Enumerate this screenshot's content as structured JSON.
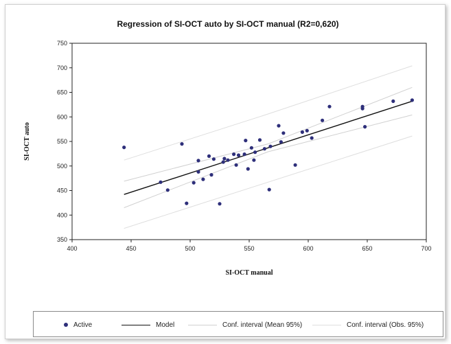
{
  "chart_data": {
    "type": "scatter",
    "title": "Regression of SI-OCT auto by SI-OCT manual (R2=0,620)",
    "xlabel": "SI-OCT manual",
    "ylabel": "SI-OCT auto",
    "xlim": [
      400,
      700
    ],
    "ylim": [
      350,
      750
    ],
    "x_ticks": [
      400,
      450,
      500,
      550,
      600,
      650,
      700
    ],
    "y_ticks": [
      350,
      400,
      450,
      500,
      550,
      600,
      650,
      700,
      750
    ],
    "x_tick_labels": [
      "400",
      "450",
      "500",
      "550",
      "600",
      "650",
      "700"
    ],
    "y_tick_labels": [
      "350",
      "400",
      "450",
      "500",
      "550",
      "600",
      "650",
      "700",
      "750"
    ],
    "grid": false,
    "legend_position": "bottom",
    "legend": [
      "Active",
      "Model",
      "Conf. interval (Mean 95%)",
      "Conf. interval (Obs. 95%)"
    ],
    "colors": {
      "points": "#2e2f7a",
      "model": "#111111",
      "conf_mean": "#d0d0d0",
      "conf_obs": "#dedede"
    },
    "series": [
      {
        "name": "Active",
        "kind": "points",
        "points": [
          [
            444,
            538
          ],
          [
            475,
            467
          ],
          [
            481,
            451
          ],
          [
            493,
            545
          ],
          [
            497,
            424
          ],
          [
            503,
            466
          ],
          [
            507,
            488
          ],
          [
            507,
            511
          ],
          [
            511,
            473
          ],
          [
            516,
            520
          ],
          [
            518,
            482
          ],
          [
            520,
            514
          ],
          [
            525,
            423
          ],
          [
            528,
            508
          ],
          [
            529,
            515
          ],
          [
            532,
            512
          ],
          [
            537,
            524
          ],
          [
            539,
            502
          ],
          [
            541,
            522
          ],
          [
            546,
            524
          ],
          [
            547,
            552
          ],
          [
            549,
            494
          ],
          [
            552,
            537
          ],
          [
            554,
            512
          ],
          [
            555,
            528
          ],
          [
            559,
            553
          ],
          [
            563,
            535
          ],
          [
            567,
            452
          ],
          [
            568,
            540
          ],
          [
            575,
            582
          ],
          [
            577,
            549
          ],
          [
            579,
            567
          ],
          [
            589,
            502
          ],
          [
            595,
            569
          ],
          [
            599,
            572
          ],
          [
            603,
            557
          ],
          [
            612,
            593
          ],
          [
            618,
            621
          ],
          [
            646,
            621
          ],
          [
            646,
            617
          ],
          [
            648,
            580
          ],
          [
            672,
            632
          ],
          [
            688,
            634
          ]
        ]
      },
      {
        "name": "Model",
        "kind": "line",
        "points": [
          [
            444,
            442
          ],
          [
            688,
            632
          ]
        ]
      },
      {
        "name": "Conf. interval (Mean 95%)",
        "kind": "band",
        "upper": [
          [
            444,
            469
          ],
          [
            566,
            545
          ],
          [
            688,
            660
          ]
        ],
        "lower": [
          [
            444,
            415
          ],
          [
            566,
            529
          ],
          [
            688,
            604
          ]
        ]
      },
      {
        "name": "Conf. interval (Obs. 95%)",
        "kind": "band",
        "upper": [
          [
            444,
            512
          ],
          [
            566,
            606
          ],
          [
            688,
            704
          ]
        ],
        "lower": [
          [
            444,
            373
          ],
          [
            566,
            467
          ],
          [
            688,
            561
          ]
        ]
      }
    ]
  }
}
